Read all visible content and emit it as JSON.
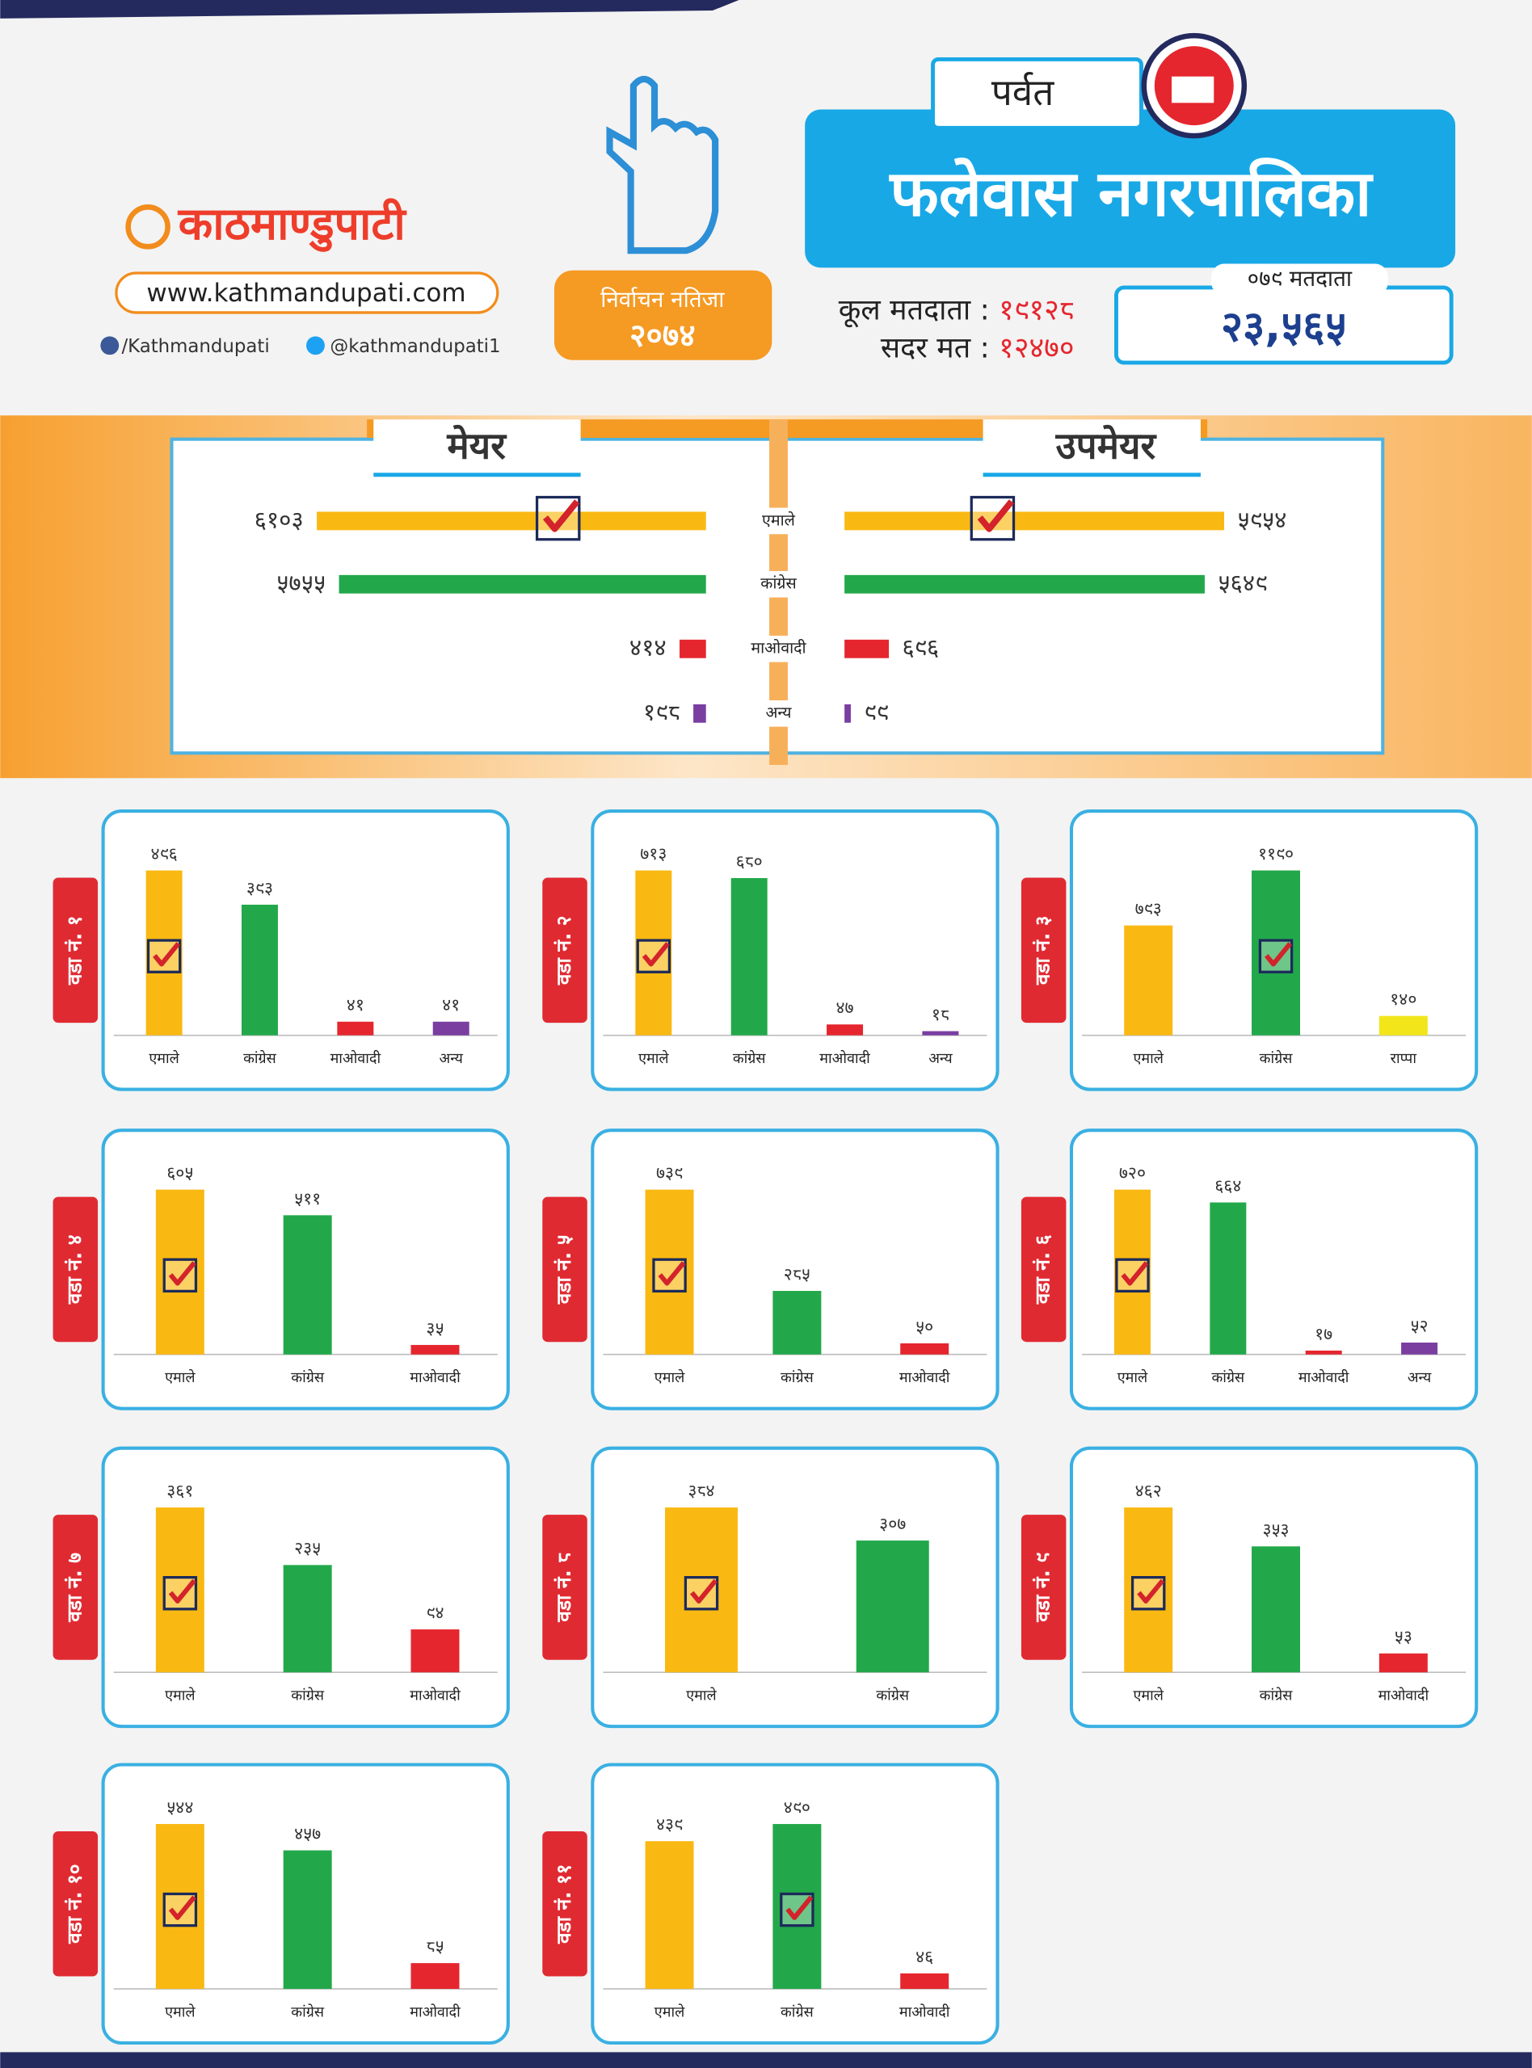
{
  "header": {
    "logo": "काठमाण्डुपाटी",
    "website": "www.kathmandupati.com",
    "facebook": "/Kathmandupati",
    "twitter": "@kathmandupati1",
    "badge_title": "निर्वाचन नतिजा",
    "badge_year": "२०७४",
    "district": "पर्वत",
    "municipality": "फलेवास नगरपालिका",
    "total_voters_label": "कूल मतदाता :",
    "total_voters": "१९१२८",
    "valid_votes_label": "सदर मत :",
    "valid_votes": "१२४७०",
    "voters_079_label": "०७९ मतदाता",
    "voters_079": "२३,५६५"
  },
  "chart_data": [
    {
      "type": "hbar",
      "title": "मेयर",
      "categories": [
        "एमाले",
        "कांग्रेस",
        "माओवादी",
        "अन्य"
      ],
      "values": [
        6103,
        5755,
        414,
        198
      ],
      "value_labels": [
        "६१०३",
        "५७५५",
        "४१४",
        "१९८"
      ],
      "colors": [
        "#f9b912",
        "#22a84a",
        "#e5262e",
        "#7a3ea1"
      ],
      "winner": 0
    },
    {
      "type": "hbar",
      "title": "उपमेयर",
      "values": [
        5954,
        5649,
        696,
        99
      ],
      "value_labels": [
        "५९५४",
        "५६४९",
        "६९६",
        "९९"
      ],
      "colors": [
        "#f9b912",
        "#22a84a",
        "#e5262e",
        "#7a3ea1"
      ],
      "winner": 0
    },
    {
      "type": "bar",
      "title": "वडा नं. १",
      "categories": [
        "एमाले",
        "कांग्रेस",
        "माओवादी",
        "अन्य"
      ],
      "values": [
        496,
        393,
        41,
        41
      ],
      "value_labels": [
        "४९६",
        "३९३",
        "४१",
        "४१"
      ],
      "colors": [
        "#f9b912",
        "#22a84a",
        "#e5262e",
        "#7a3ea1"
      ],
      "winner": 0
    },
    {
      "type": "bar",
      "title": "वडा नं. २",
      "categories": [
        "एमाले",
        "कांग्रेस",
        "माओवादी",
        "अन्य"
      ],
      "values": [
        713,
        680,
        47,
        18
      ],
      "value_labels": [
        "७१३",
        "६८०",
        "४७",
        "१८"
      ],
      "colors": [
        "#f9b912",
        "#22a84a",
        "#e5262e",
        "#7a3ea1"
      ],
      "winner": 0
    },
    {
      "type": "bar",
      "title": "वडा नं. ३",
      "categories": [
        "एमाले",
        "कांग्रेस",
        "राप्पा"
      ],
      "values": [
        793,
        1190,
        140
      ],
      "value_labels": [
        "७९३",
        "११९०",
        "१४०"
      ],
      "colors": [
        "#f9b912",
        "#22a84a",
        "#f2e61a"
      ],
      "winner": 1
    },
    {
      "type": "bar",
      "title": "वडा नं. ४",
      "categories": [
        "एमाले",
        "कांग्रेस",
        "माओवादी"
      ],
      "values": [
        605,
        511,
        35
      ],
      "value_labels": [
        "६०५",
        "५११",
        "३५"
      ],
      "colors": [
        "#f9b912",
        "#22a84a",
        "#e5262e"
      ],
      "winner": 0
    },
    {
      "type": "bar",
      "title": "वडा नं. ५",
      "categories": [
        "एमाले",
        "कांग्रेस",
        "माओवादी"
      ],
      "values": [
        739,
        285,
        50
      ],
      "value_labels": [
        "७३९",
        "२८५",
        "५०"
      ],
      "colors": [
        "#f9b912",
        "#22a84a",
        "#e5262e"
      ],
      "winner": 0
    },
    {
      "type": "bar",
      "title": "वडा नं. ६",
      "categories": [
        "एमाले",
        "कांग्रेस",
        "माओवादी",
        "अन्य"
      ],
      "values": [
        720,
        664,
        17,
        52
      ],
      "value_labels": [
        "७२०",
        "६६४",
        "१७",
        "५२"
      ],
      "colors": [
        "#f9b912",
        "#22a84a",
        "#e5262e",
        "#7a3ea1"
      ],
      "winner": 0
    },
    {
      "type": "bar",
      "title": "वडा नं. ७",
      "categories": [
        "एमाले",
        "कांग्रेस",
        "माओवादी"
      ],
      "values": [
        361,
        235,
        94
      ],
      "value_labels": [
        "३६१",
        "२३५",
        "९४"
      ],
      "colors": [
        "#f9b912",
        "#22a84a",
        "#e5262e"
      ],
      "winner": 0
    },
    {
      "type": "bar",
      "title": "वडा नं. ८",
      "categories": [
        "एमाले",
        "कांग्रेस"
      ],
      "values": [
        384,
        307
      ],
      "value_labels": [
        "३८४",
        "३०७"
      ],
      "colors": [
        "#f9b912",
        "#22a84a"
      ],
      "winner": 0
    },
    {
      "type": "bar",
      "title": "वडा नं. ९",
      "categories": [
        "एमाले",
        "कांग्रेस",
        "माओवादी"
      ],
      "values": [
        462,
        353,
        53
      ],
      "value_labels": [
        "४६२",
        "३५३",
        "५३"
      ],
      "colors": [
        "#f9b912",
        "#22a84a",
        "#e5262e"
      ],
      "winner": 0
    },
    {
      "type": "bar",
      "title": "वडा नं. १०",
      "categories": [
        "एमाले",
        "कांग्रेस",
        "माओवादी"
      ],
      "values": [
        544,
        457,
        85
      ],
      "value_labels": [
        "५४४",
        "४५७",
        "८५"
      ],
      "colors": [
        "#f9b912",
        "#22a84a",
        "#e5262e"
      ],
      "winner": 0
    },
    {
      "type": "bar",
      "title": "वडा नं. ११",
      "categories": [
        "एमाले",
        "कांग्रेस",
        "माओवादी"
      ],
      "values": [
        439,
        490,
        46
      ],
      "value_labels": [
        "४३९",
        "४९०",
        "४६"
      ],
      "colors": [
        "#f9b912",
        "#22a84a",
        "#e5262e"
      ],
      "winner": 1
    }
  ]
}
